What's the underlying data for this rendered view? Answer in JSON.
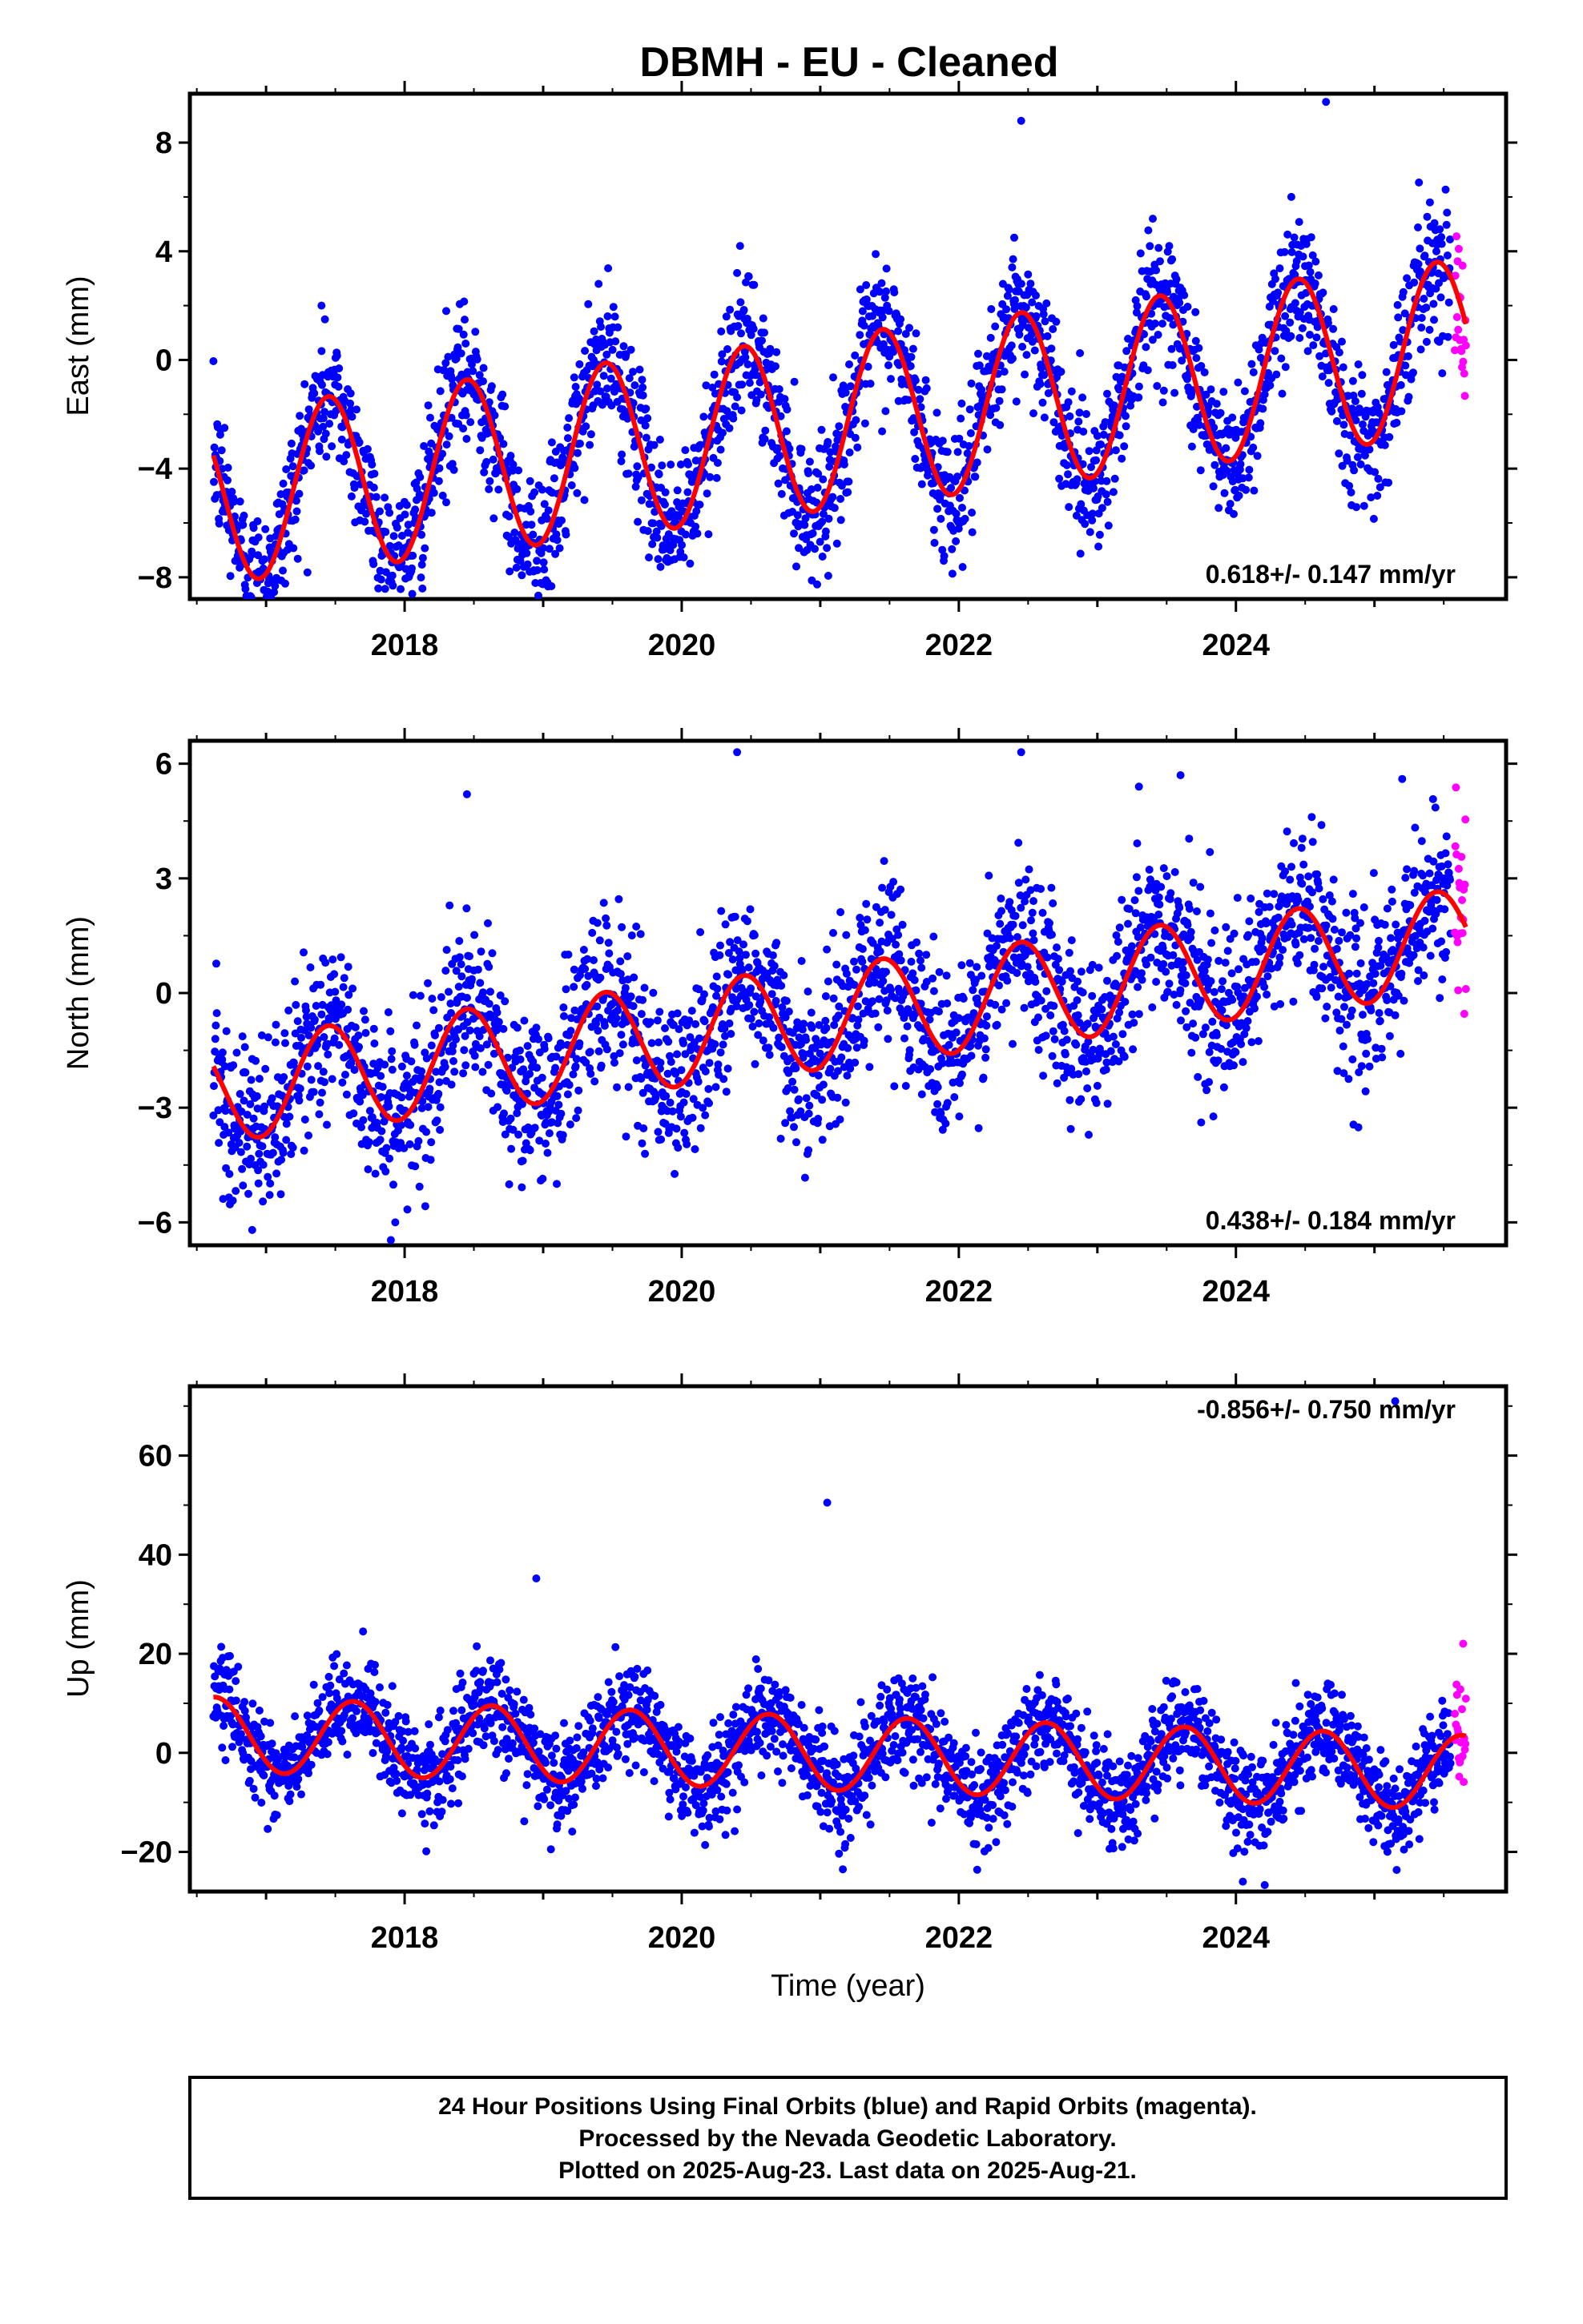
{
  "chart_data": [
    {
      "type": "scatter",
      "title": "DBMH  - EU - Cleaned",
      "ylabel": "East (mm)",
      "xlabel": "",
      "xlim": [
        2016.45,
        2025.95
      ],
      "ylim": [
        -8.8,
        9.8
      ],
      "x_ticks": [
        "2018",
        "2020",
        "2022",
        "2024"
      ],
      "y_ticks": [
        "8",
        "4",
        "0",
        "−4",
        "−8"
      ],
      "grid": false,
      "rate_text": "0.618+/- 0.147 mm/yr",
      "model": {
        "trend": 0.618,
        "offset": -2.35,
        "amp": 3.2,
        "phase_year": 0.2,
        "t0": 2021.0
      },
      "scatter_spread": 1.25,
      "sample_points": [
        [
          2016.7,
          -2.5
        ],
        [
          2017.4,
          2.0
        ],
        [
          2018.3,
          1.8
        ],
        [
          2019.4,
          2.8
        ],
        [
          2020.4,
          3.2
        ],
        [
          2021.4,
          3.9
        ],
        [
          2022.4,
          4.5
        ],
        [
          2023.4,
          5.2
        ],
        [
          2024.4,
          6.0
        ],
        [
          2025.4,
          5.8
        ],
        [
          2022.45,
          8.8
        ],
        [
          2024.65,
          9.5
        ]
      ],
      "series": [
        {
          "name": "Final Orbits",
          "color": "#0000ff"
        },
        {
          "name": "Rapid Orbits",
          "color": "#ff00ff"
        },
        {
          "name": "Model",
          "color": "#ff0000"
        }
      ]
    },
    {
      "type": "scatter",
      "title": "",
      "ylabel": "North (mm)",
      "xlabel": "",
      "xlim": [
        2016.45,
        2025.95
      ],
      "ylim": [
        -6.6,
        6.6
      ],
      "x_ticks": [
        "2018",
        "2020",
        "2022",
        "2024"
      ],
      "y_ticks": [
        "6",
        "3",
        "0",
        "−3",
        "−6"
      ],
      "grid": false,
      "rate_text": "0.438+/- 0.184 mm/yr",
      "model": {
        "trend": 0.438,
        "offset": -0.65,
        "amp": 1.35,
        "phase_year": 0.2,
        "t0": 2021.0
      },
      "scatter_spread": 1.1,
      "sample_points": [
        [
          2016.9,
          -6.2
        ],
        [
          2018.45,
          5.2
        ],
        [
          2020.4,
          6.3
        ],
        [
          2022.45,
          6.3
        ],
        [
          2023.3,
          5.4
        ],
        [
          2023.6,
          5.7
        ],
        [
          2025.2,
          5.6
        ]
      ],
      "series": [
        {
          "name": "Final Orbits",
          "color": "#0000ff"
        },
        {
          "name": "Rapid Orbits",
          "color": "#ff00ff"
        },
        {
          "name": "Model",
          "color": "#ff0000"
        }
      ]
    },
    {
      "type": "scatter",
      "title": "",
      "ylabel": "Up (mm)",
      "xlabel": "Time (year)",
      "xlim": [
        2016.45,
        2025.95
      ],
      "ylim": [
        -28,
        74
      ],
      "x_ticks": [
        "2018",
        "2020",
        "2022",
        "2024"
      ],
      "y_ticks": [
        "60",
        "40",
        "20",
        "0",
        "−20"
      ],
      "grid": false,
      "rate_text": "-0.856+/- 0.750 mm/yr",
      "model": {
        "trend": -0.856,
        "offset": 0.0,
        "amp": 7.5,
        "phase_year": 0.38,
        "t0": 2021.0
      },
      "scatter_spread": 4.8,
      "sample_points": [
        [
          2018.95,
          35.2
        ],
        [
          2021.05,
          50.5
        ],
        [
          2025.15,
          71.0
        ],
        [
          2017.7,
          24.5
        ],
        [
          2024.05,
          -26.0
        ]
      ],
      "series": [
        {
          "name": "Final Orbits",
          "color": "#0000ff"
        },
        {
          "name": "Rapid Orbits",
          "color": "#ff00ff"
        },
        {
          "name": "Model",
          "color": "#ff0000"
        }
      ]
    }
  ],
  "footer": {
    "line1": "24 Hour Positions Using Final Orbits (blue) and Rapid Orbits (magenta).",
    "line2": "Processed by the Nevada Geodetic Laboratory.",
    "line3": "Plotted on 2025-Aug-23. Last data on 2025-Aug-21."
  }
}
